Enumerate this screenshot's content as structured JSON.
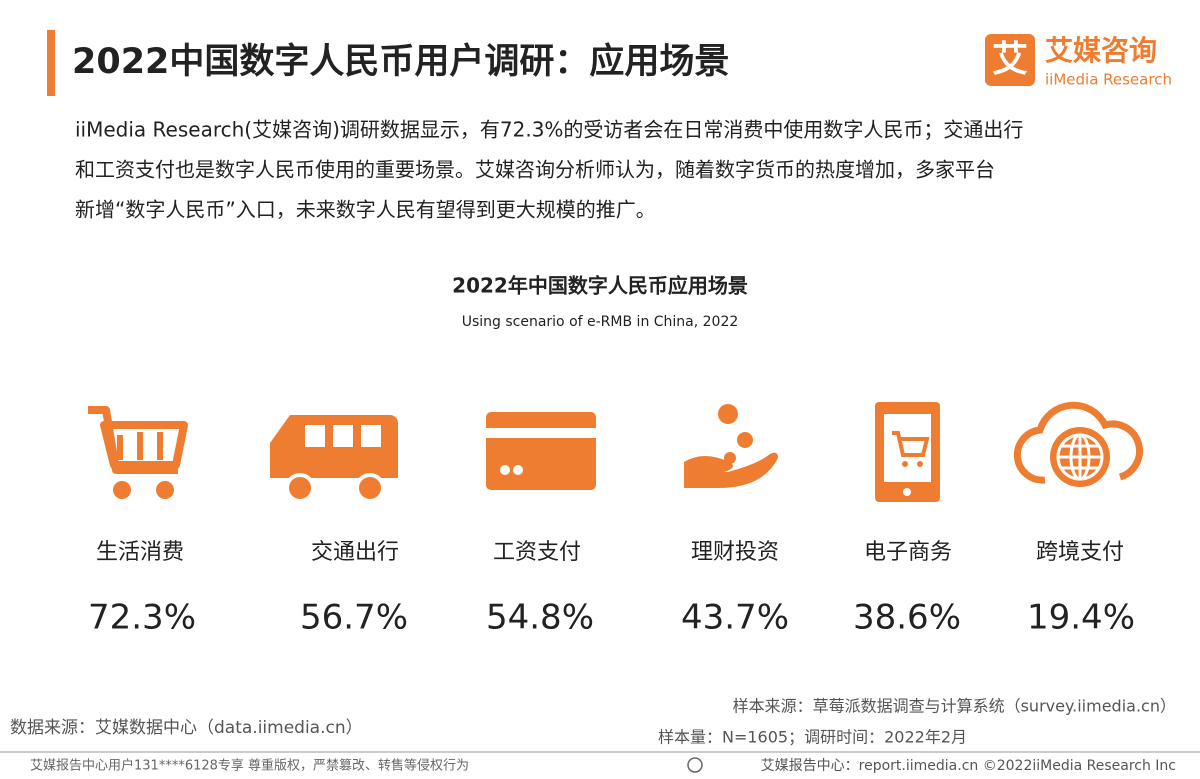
{
  "header": {
    "title": "2022中国数字人民币用户调研：应用场景",
    "logo_cn": "艾媒咨询",
    "logo_en": "iiMedia Research",
    "logo_mark": "艾"
  },
  "intro": [
    "iiMedia Research(艾媒咨询)调研数据显示，有72.3%的受访者会在日常消费中使用数字人民币；交通出行",
    "和工资支付也是数字人民币使用的重要场景。艾媒咨询分析师认为，随着数字货币的热度增加，多家平台",
    "新增“数字人民币”入口，未来数字人民有望得到更大规模的推广。"
  ],
  "figure": {
    "title": "2022年中国数字人民币应用场景",
    "subtitle": "Using scenario of e-RMB in China, 2022",
    "items": [
      {
        "label": "生活消费",
        "value": "72.3%"
      },
      {
        "label": "交通出行",
        "value": "56.7%"
      },
      {
        "label": "工资支付",
        "value": "54.8%"
      },
      {
        "label": "理财投资",
        "value": "43.7%"
      },
      {
        "label": "电子商务",
        "value": "38.6%"
      },
      {
        "label": "跨境支付",
        "value": "19.4%"
      }
    ]
  },
  "footer": {
    "data_source": "数据来源：艾媒数据中心（data.iimedia.cn）",
    "sample_source": "样本来源：草莓派数据调查与计算系统（survey.iimedia.cn）",
    "sample_info": "样本量：N=1605；调研时间：2022年2月",
    "notice": "艾媒报告中心用户131****6128专享 尊重版权，严禁篡改、转售等侵权行为",
    "report_center": "艾媒报告中心：report.iimedia.cn ©2022iiMedia Research Inc"
  }
}
